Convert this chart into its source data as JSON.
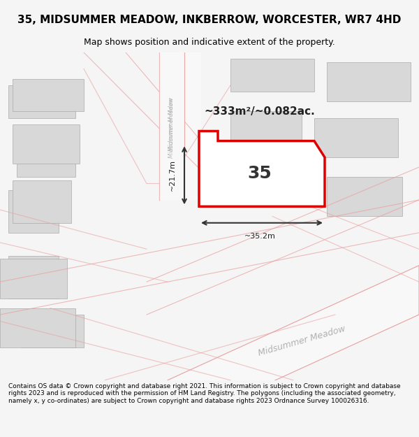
{
  "title": "35, MIDSUMMER MEADOW, INKBERROW, WORCESTER, WR7 4HD",
  "subtitle": "Map shows position and indicative extent of the property.",
  "footer": "Contains OS data © Crown copyright and database right 2021. This information is subject to Crown copyright and database rights 2023 and is reproduced with the permission of HM Land Registry. The polygons (including the associated geometry, namely x, y co-ordinates) are subject to Crown copyright and database rights 2023 Ordnance Survey 100026316.",
  "area_label": "~333m²/~0.082ac.",
  "width_label": "~35.2m",
  "height_label": "~21.7m",
  "number_label": "35",
  "background_color": "#f5f5f5",
  "map_bg": "#ffffff",
  "building_color": "#d8d8d8",
  "road_color": "#ffffff",
  "road_outline": "#e8a0a0",
  "plot_outline_color": "#dd0000",
  "plot_fill_color": "#ffffff",
  "dim_line_color": "#333333",
  "street_label_color": "#b0b0b0",
  "street_label_diagonal": "Midsummer Meadow"
}
